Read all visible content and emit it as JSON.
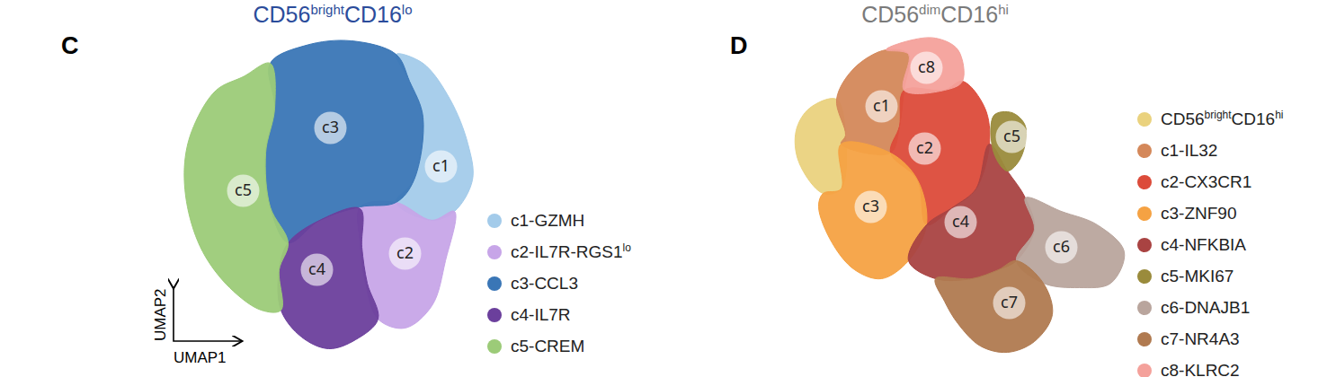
{
  "chart_data": [
    {
      "type": "scatter",
      "panel_label": "C",
      "title": [
        {
          "text": "CD56"
        },
        {
          "text": "bright",
          "sup": true
        },
        {
          "text": "CD16"
        },
        {
          "text": "lo",
          "sup": true
        }
      ],
      "x_label": "UMAP1",
      "y_label": "UMAP2",
      "tick_labels": false,
      "xlim": [
        190,
        540
      ],
      "ylim": [
        400,
        30
      ],
      "series": [
        {
          "name": "c1-GZMH",
          "label": "c1",
          "color": "#a3cbea",
          "label_x": 490,
          "label_y": 185,
          "x": [
            440,
            470,
            500,
            520,
            525,
            505,
            480,
            440,
            460,
            470,
            455
          ],
          "y": [
            60,
            70,
            110,
            160,
            200,
            235,
            245,
            225,
            200,
            130,
            90
          ]
        },
        {
          "name": [
            {
              "text": "c2-IL7R-RGS1"
            },
            {
              "text": "lo",
              "sup": true
            }
          ],
          "label": "c2",
          "color": "#c7a5e8",
          "label_x": 450,
          "label_y": 282,
          "x": [
            440,
            480,
            505,
            495,
            480,
            450,
            420,
            405,
            400,
            400
          ],
          "y": [
            225,
            245,
            235,
            290,
            340,
            365,
            355,
            310,
            270,
            230
          ]
        },
        {
          "name": "c3-CCL3",
          "label": "c3",
          "color": "#3a76b6",
          "label_x": 367,
          "label_y": 142,
          "x": [
            300,
            340,
            390,
            440,
            455,
            470,
            460,
            440,
            400,
            355,
            320,
            300,
            295,
            305
          ],
          "y": [
            70,
            50,
            45,
            60,
            90,
            130,
            200,
            225,
            230,
            245,
            270,
            230,
            170,
            120
          ]
        },
        {
          "name": "c4-IL7R",
          "label": "c4",
          "color": "#6b3f9c",
          "label_x": 352,
          "label_y": 300,
          "x": [
            320,
            355,
            400,
            402,
            408,
            420,
            395,
            365,
            335,
            312,
            310
          ],
          "y": [
            270,
            245,
            232,
            275,
            315,
            355,
            378,
            388,
            375,
            345,
            300
          ]
        },
        {
          "name": "c5-CREM",
          "label": "c5",
          "color": "#9ccb78",
          "label_x": 270,
          "label_y": 212,
          "x": [
            240,
            270,
            300,
            305,
            295,
            300,
            320,
            310,
            312,
            290,
            255,
            225,
            208,
            205,
            215
          ],
          "y": [
            100,
            85,
            70,
            120,
            170,
            230,
            270,
            300,
            345,
            345,
            320,
            280,
            230,
            180,
            140
          ]
        }
      ]
    },
    {
      "type": "scatter",
      "panel_label": "D",
      "title": [
        {
          "text": "CD56"
        },
        {
          "text": "dim",
          "sup": true
        },
        {
          "text": "CD16"
        },
        {
          "text": "hi",
          "sup": true
        }
      ],
      "tick_labels": false,
      "xlim": [
        870,
        1260
      ],
      "ylim": [
        400,
        30
      ],
      "series": [
        {
          "name": [
            {
              "text": "CD56"
            },
            {
              "text": "bright",
              "sup": true
            },
            {
              "text": "CD16"
            },
            {
              "text": "hi",
              "sup": true
            }
          ],
          "color": "#ead27e",
          "x": [
            900,
            930,
            940,
            935,
            915,
            888,
            885
          ],
          "y": [
            120,
            110,
            150,
            210,
            215,
            180,
            145
          ]
        },
        {
          "name": "c1-IL32",
          "label": "c1",
          "color": "#d4885a",
          "label_x": 980,
          "label_y": 118,
          "x": [
            930,
            950,
            985,
            1010,
            1005,
            1000,
            990,
            935,
            940
          ],
          "y": [
            110,
            75,
            55,
            60,
            100,
            140,
            170,
            160,
            150
          ]
        },
        {
          "name": "c2-CX3CR1",
          "label": "c2",
          "color": "#dc4b3a",
          "label_x": 1028,
          "label_y": 165,
          "x": [
            1005,
            1050,
            1070,
            1095,
            1100,
            1085,
            1060,
            1030,
            1020,
            990,
            1000
          ],
          "y": [
            100,
            100,
            90,
            120,
            160,
            210,
            230,
            250,
            200,
            170,
            140
          ]
        },
        {
          "name": "c3-ZNF90",
          "label": "c3",
          "color": "#f5a243",
          "label_x": 968,
          "label_y": 230,
          "x": [
            935,
            990,
            1020,
            1030,
            1010,
            980,
            950,
            925,
            910,
            915,
            935
          ],
          "y": [
            160,
            170,
            200,
            250,
            290,
            310,
            300,
            270,
            230,
            215,
            210
          ]
        },
        {
          "name": "c4-NFKBIA",
          "label": "c4",
          "color": "#a94342",
          "label_x": 1068,
          "label_y": 247,
          "x": [
            1030,
            1060,
            1085,
            1100,
            1120,
            1140,
            1150,
            1130,
            1110,
            1080,
            1040,
            1010
          ],
          "y": [
            250,
            230,
            210,
            160,
            190,
            220,
            255,
            290,
            300,
            310,
            310,
            290
          ]
        },
        {
          "name": "c5-MKI67",
          "label": "c5",
          "color": "#9a8b3c",
          "label_x": 1125,
          "label_y": 152,
          "x": [
            1105,
            1125,
            1140,
            1135,
            1120,
            1105
          ],
          "y": [
            128,
            125,
            140,
            175,
            190,
            170
          ]
        },
        {
          "name": "c6-DNAJB1",
          "label": "c6",
          "color": "#b9a59d",
          "label_x": 1180,
          "label_y": 275,
          "x": [
            1140,
            1180,
            1220,
            1250,
            1235,
            1200,
            1160,
            1130,
            1150
          ],
          "y": [
            220,
            235,
            250,
            280,
            315,
            320,
            315,
            290,
            255
          ]
        },
        {
          "name": "c7-NR4A3",
          "label": "c7",
          "color": "#b07a50",
          "label_x": 1122,
          "label_y": 337,
          "x": [
            1040,
            1080,
            1110,
            1130,
            1160,
            1170,
            1150,
            1120,
            1090,
            1065,
            1050
          ],
          "y": [
            310,
            310,
            300,
            290,
            315,
            350,
            380,
            392,
            385,
            360,
            335
          ]
        },
        {
          "name": "c8-KLRC2",
          "label": "c8",
          "color": "#f4a19b",
          "label_x": 1030,
          "label_y": 75,
          "x": [
            985,
            1010,
            1040,
            1065,
            1070,
            1050,
            1005,
            1010
          ],
          "y": [
            55,
            45,
            42,
            55,
            90,
            100,
            100,
            60
          ]
        }
      ]
    }
  ]
}
